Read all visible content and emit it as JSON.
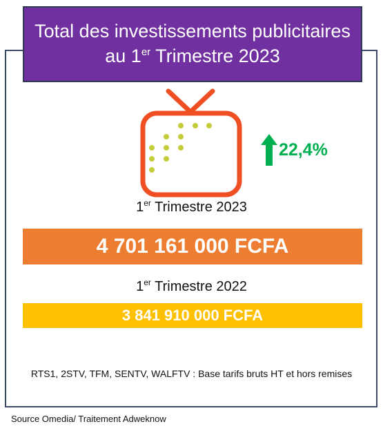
{
  "title": {
    "line1": "Total des investissements publicitaires",
    "line2_prefix": "au 1",
    "line2_sup": "er",
    "line2_suffix": " Trimestre 2023"
  },
  "icons": {
    "tv": "tv-icon",
    "growth": "arrow-up-icon"
  },
  "growth": {
    "label": "22,4%",
    "color": "#00b050"
  },
  "chart_data": {
    "type": "bar",
    "categories": [
      "1er Trimestre 2023",
      "1er Trimestre 2022"
    ],
    "values": [
      4701161000,
      3841910000
    ],
    "value_labels": [
      "4 701 161 000 FCFA",
      "3 841 910 000 FCFA"
    ],
    "colors": [
      "#ed7d31",
      "#ffc000"
    ],
    "periods": [
      {
        "prefix": "1",
        "sup": "er",
        "suffix": " Trimestre 2023"
      },
      {
        "prefix": "1",
        "sup": "er",
        "suffix": " Trimestre 2022"
      }
    ]
  },
  "note": "RTS1, 2STV, TFM, SENTV, WALFTV : Base tarifs bruts HT et hors remises",
  "source": "Source Omedia/ Traitement Adweknow",
  "colors": {
    "title_bg": "#7030a0",
    "tv_outline": "#f04e23",
    "tv_dots": "#c5cc3a"
  }
}
